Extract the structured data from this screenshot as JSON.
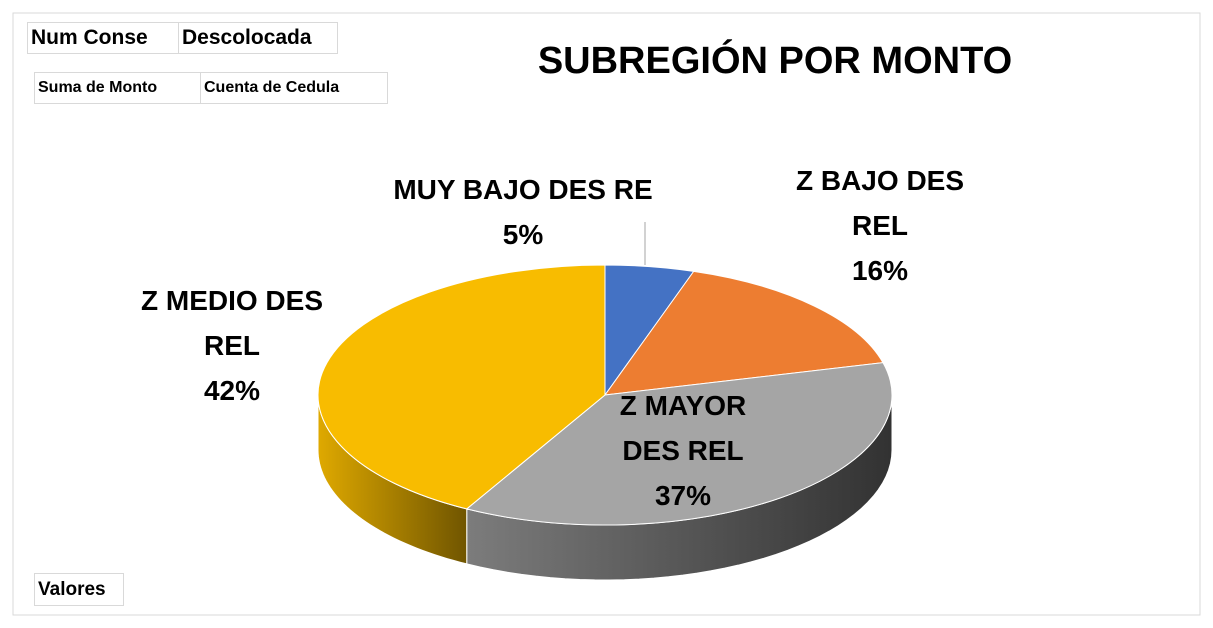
{
  "chart_data": {
    "type": "pie3d",
    "title": "SUBREGIÓN POR MONTO",
    "categories": [
      "MUY BAJO DES RE",
      "Z BAJO DES REL",
      "Z MAYOR DES REL",
      "Z MEDIO DES REL"
    ],
    "values": [
      5,
      16,
      37,
      42
    ],
    "value_labels": [
      "5%",
      "16%",
      "37%",
      "42%"
    ],
    "colors": [
      "#4472c4",
      "#ed7d31",
      "#a5a5a5",
      "#f8bc00"
    ],
    "filter_fields": [
      "Num Conse",
      "Descolocada"
    ],
    "value_fields": [
      "Suma de Monto",
      "Cuenta de Cedula"
    ],
    "axis_field": "Valores"
  }
}
